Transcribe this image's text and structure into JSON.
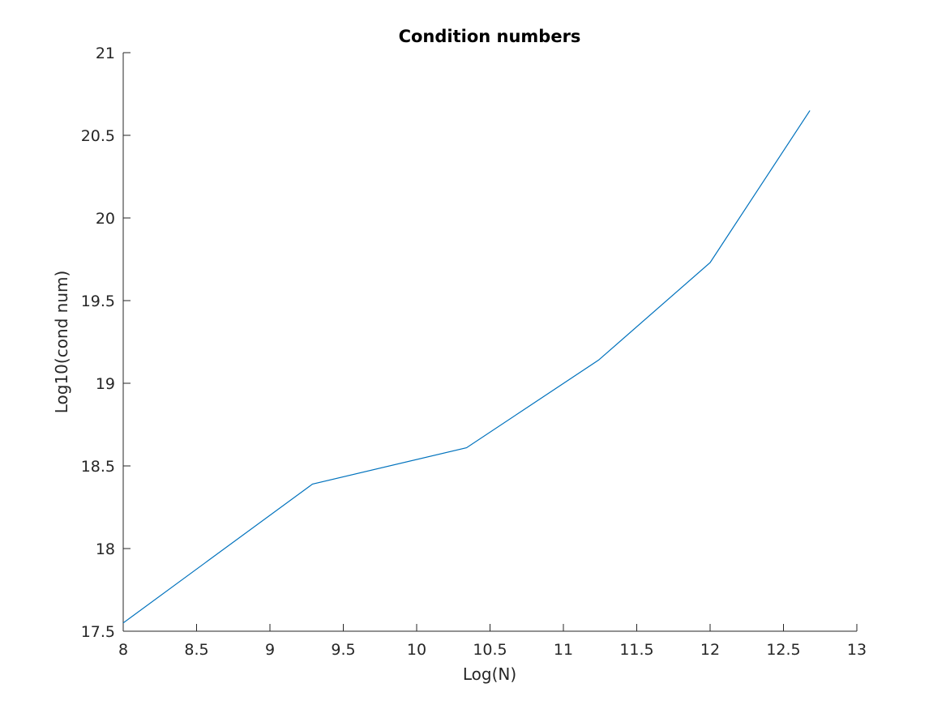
{
  "chart_data": {
    "type": "line",
    "title": "Condition numbers",
    "xlabel": "Log(N)",
    "ylabel": "Log10(cond num)",
    "xlim": [
      8,
      13
    ],
    "ylim": [
      17.5,
      21
    ],
    "xticks": [
      "8",
      "8.5",
      "9",
      "9.5",
      "10",
      "10.5",
      "11",
      "11.5",
      "12",
      "12.5",
      "13"
    ],
    "yticks": [
      "17.5",
      "18",
      "18.5",
      "19",
      "19.5",
      "20",
      "20.5",
      "21"
    ],
    "grid": false,
    "series": [
      {
        "color": "#0072BD",
        "x": [
          8.0,
          9.29,
          10.34,
          11.24,
          12.0,
          12.68
        ],
        "y": [
          17.55,
          18.39,
          18.61,
          19.14,
          19.73,
          20.65
        ]
      }
    ]
  }
}
